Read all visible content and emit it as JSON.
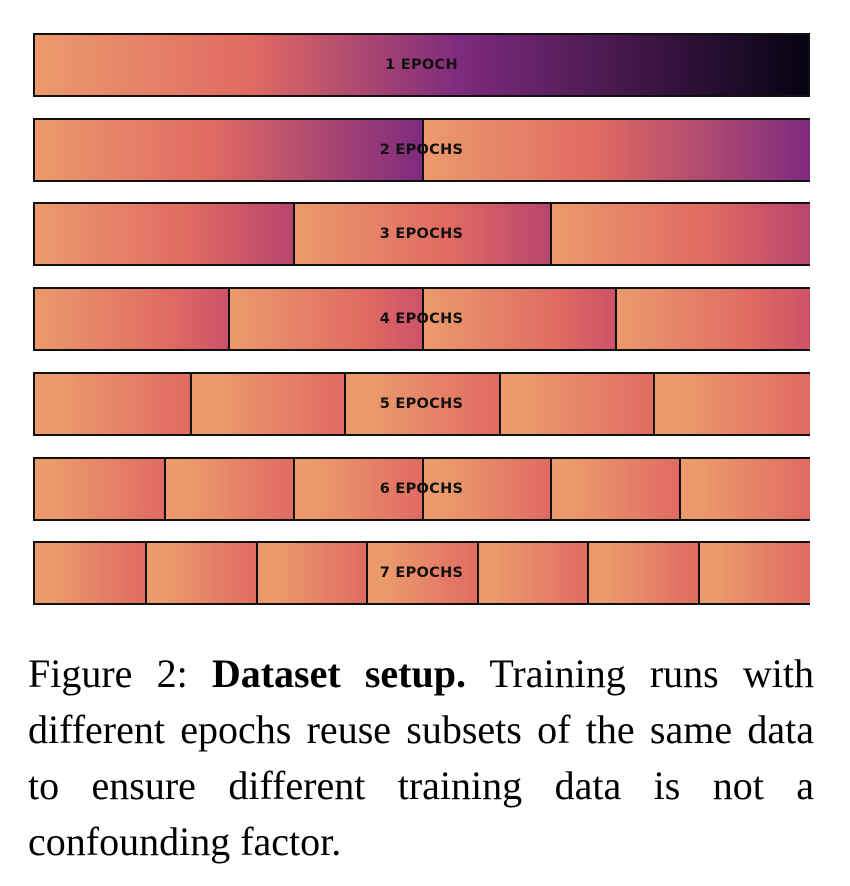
{
  "chart_data": {
    "type": "bar",
    "categories": [
      "1 EPOCH",
      "2 EPOCHS",
      "3 EPOCHS",
      "4 EPOCHS",
      "5 EPOCHS",
      "6 EPOCHS",
      "7 EPOCHS"
    ],
    "epochs": [
      1,
      2,
      3,
      4,
      5,
      6,
      7
    ],
    "segment_data_fraction": [
      1.0,
      0.5,
      0.3333,
      0.25,
      0.2,
      0.1667,
      0.1429
    ],
    "colormap": "magma",
    "colors": {
      "start": "#eb9a6c",
      "mid": "#e06a62",
      "purple": "#7e2a7e",
      "end": "#050312",
      "border": "#111111"
    }
  },
  "caption": {
    "prefix": "Figure 2: ",
    "title": "Dataset setup.",
    "text": " Training runs with different epochs reuse subsets of the same data to ensure different training data is not a confounding factor."
  }
}
